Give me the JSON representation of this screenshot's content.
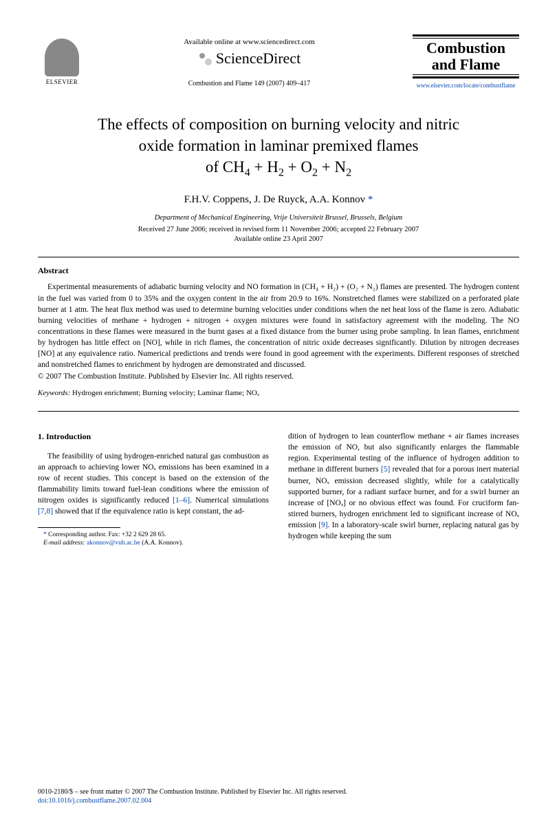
{
  "header": {
    "available_text": "Available online at www.sciencedirect.com",
    "sciencedirect_label": "ScienceDirect",
    "elsevier_label": "ELSEVIER",
    "citation": "Combustion and Flame 149 (2007) 409–417",
    "journal_name_line1": "Combustion",
    "journal_name_line2": "and Flame",
    "journal_url": "www.elsevier.com/locate/combustflame"
  },
  "title_parts": {
    "line1": "The effects of composition on burning velocity and nitric",
    "line2": "oxide formation in laminar premixed flames",
    "line3_prefix": "of CH",
    "line3_rest": " + H₂ + O₂ + N₂"
  },
  "authors": "F.H.V. Coppens, J. De Ruyck, A.A. Konnov",
  "affiliation": "Department of Mechanical Engineering, Vrije Universiteit Brussel, Brussels, Belgium",
  "received": "Received 27 June 2006; received in revised form 11 November 2006; accepted 22 February 2007",
  "available_online": "Available online 23 April 2007",
  "abstract": {
    "heading": "Abstract",
    "text": "Experimental measurements of adiabatic burning velocity and NO formation in (CH₄ + H₂) + (O₂ + N₂) flames are presented. The hydrogen content in the fuel was varied from 0 to 35% and the oxygen content in the air from 20.9 to 16%. Nonstretched flames were stabilized on a perforated plate burner at 1 atm. The heat flux method was used to determine burning velocities under conditions when the net heat loss of the flame is zero. Adiabatic burning velocities of methane + hydrogen + nitrogen + oxygen mixtures were found in satisfactory agreement with the modeling. The NO concentrations in these flames were measured in the burnt gases at a fixed distance from the burner using probe sampling. In lean flames, enrichment by hydrogen has little effect on [NO], while in rich flames, the concentration of nitric oxide decreases significantly. Dilution by nitrogen decreases [NO] at any equivalence ratio. Numerical predictions and trends were found in good agreement with the experiments. Different responses of stretched and nonstretched flames to enrichment by hydrogen are demonstrated and discussed.",
    "copyright": "© 2007 The Combustion Institute. Published by Elsevier Inc. All rights reserved."
  },
  "keywords": {
    "label": "Keywords:",
    "text": " Hydrogen enrichment; Burning velocity; Laminar flame; NOₓ"
  },
  "intro": {
    "heading": "1. Introduction",
    "col1": "The feasibility of using hydrogen-enriched natural gas combustion as an approach to achieving lower NOₓ emissions has been examined in a row of recent studies. This concept is based on the extension of the flammability limits toward fuel-lean conditions where the emission of nitrogen oxides is significantly reduced ",
    "ref1": "[1–6]",
    "col1b": ". Numerical simulations ",
    "ref2": "[7,8]",
    "col1c": " showed that if the equivalence ratio is kept constant, the ad-",
    "col2a": "dition of hydrogen to lean counterflow methane + air flames increases the emission of NO, but also significantly enlarges the flammable region. Experimental testing of the influence of hydrogen addition to methane in different burners ",
    "ref3": "[5]",
    "col2b": " revealed that for a porous inert material burner, NOₓ emission decreased slightly, while for a catalytically supported burner, for a radiant surface burner, and for a swirl burner an increase of [NOₓ] or no obvious effect was found. For cruciform fan-stirred burners, hydrogen enrichment led to significant increase of NOₓ emission ",
    "ref4": "[9]",
    "col2c": ". In a laboratory-scale swirl burner, replacing natural gas by hydrogen while keeping the sum"
  },
  "footnote": {
    "corresponding": "Corresponding author. Fax: +32 2 629 28 65.",
    "email_label": "E-mail address:",
    "email": "akonnov@vub.ac.be",
    "email_suffix": " (A.A. Konnov)."
  },
  "footer": {
    "line1": "0010-2180/$ – see front matter  © 2007 The Combustion Institute. Published by Elsevier Inc. All rights reserved.",
    "doi": "doi:10.1016/j.combustflame.2007.02.004"
  }
}
